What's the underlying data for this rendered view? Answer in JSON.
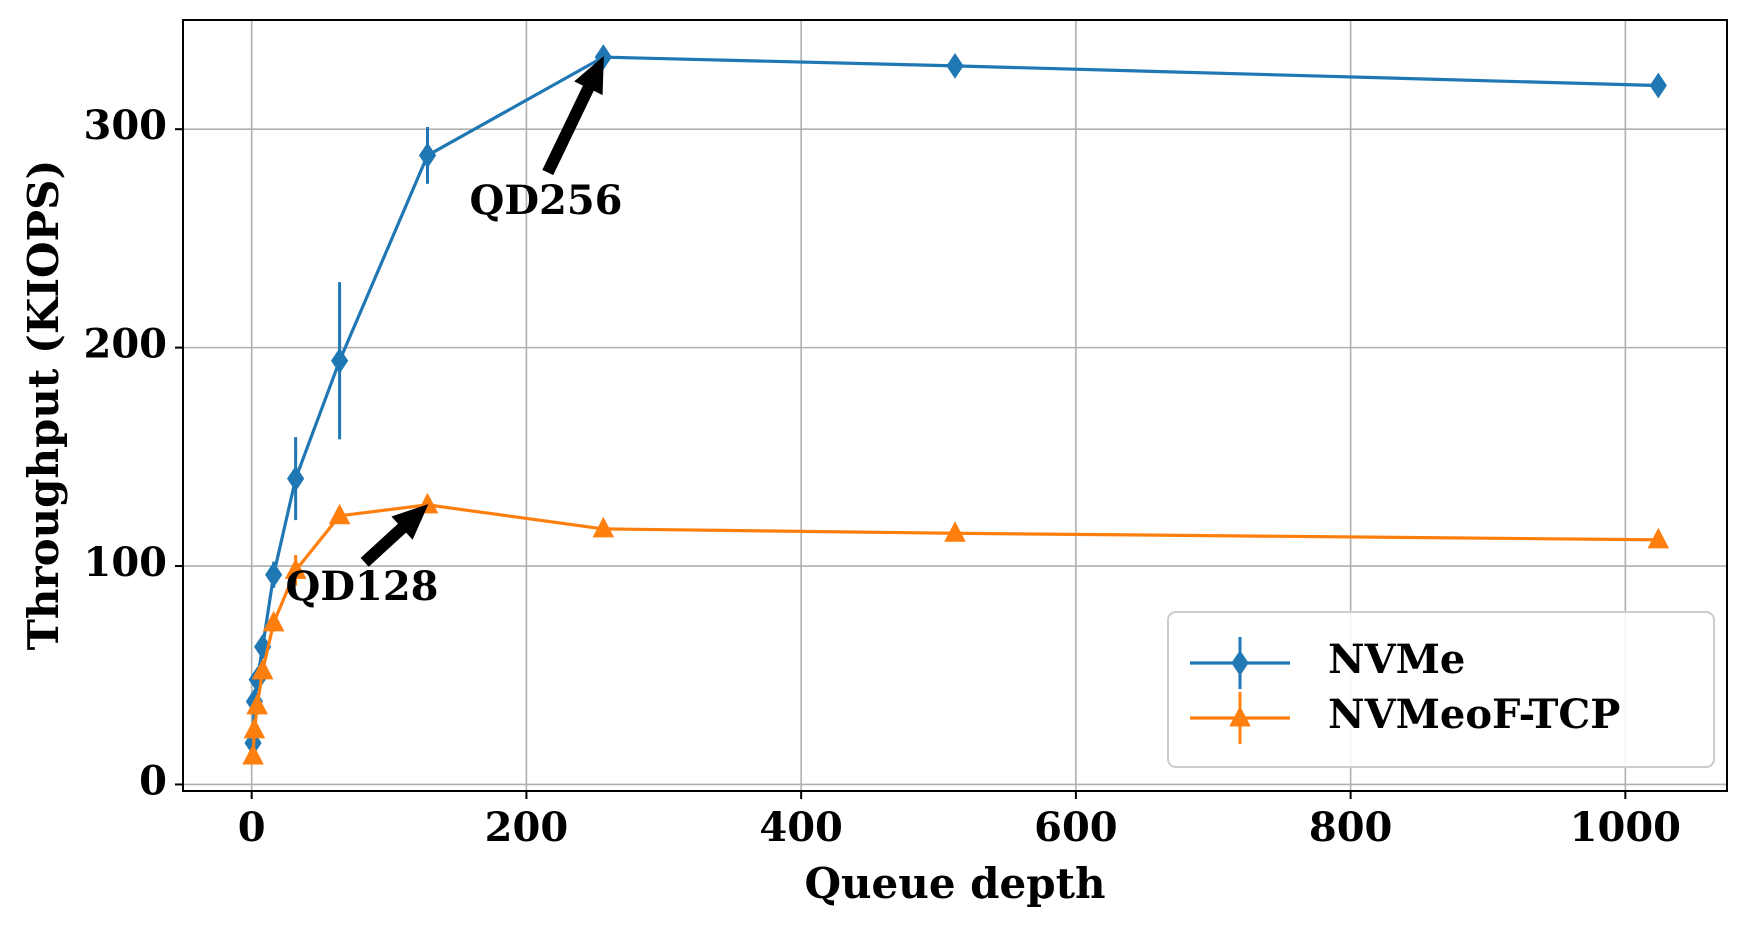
{
  "chart_data": {
    "type": "line",
    "xlabel": "Queue depth",
    "ylabel": "Throughput (KIOPS)",
    "xlim": [
      -50,
      1074
    ],
    "ylim": [
      -3,
      350
    ],
    "xticks": [
      0,
      200,
      400,
      600,
      800,
      1000
    ],
    "yticks": [
      0,
      100,
      200,
      300
    ],
    "xtick_labels": [
      "0",
      "200",
      "400",
      "600",
      "800",
      "1000"
    ],
    "ytick_labels": [
      "0",
      "100",
      "200",
      "300"
    ],
    "grid": true,
    "legend_position": "lower-right",
    "series": [
      {
        "name": "NVMe",
        "color": "#1f77b4",
        "marker": "diamond",
        "x": [
          1,
          2,
          4,
          8,
          16,
          32,
          64,
          128,
          256,
          512,
          1024
        ],
        "y": [
          19,
          38,
          48,
          63,
          96,
          140,
          194,
          288,
          333,
          329,
          320
        ],
        "err": [
          0,
          2,
          2,
          4,
          6,
          19,
          36,
          13,
          0,
          0,
          0
        ]
      },
      {
        "name": "NVMeoF-TCP",
        "color": "#ff7f0e",
        "marker": "triangle",
        "x": [
          1,
          2,
          4,
          8,
          16,
          32,
          64,
          128,
          256,
          512,
          1024
        ],
        "y": [
          13,
          25,
          36,
          52,
          74,
          98,
          123,
          128,
          117,
          115,
          112
        ],
        "err": [
          0,
          1,
          2,
          3,
          4,
          7,
          0,
          0,
          0,
          0,
          0
        ]
      }
    ],
    "annotations": [
      {
        "text": "QD256",
        "x": 256,
        "y": 333
      },
      {
        "text": "QD128",
        "x": 128,
        "y": 128
      }
    ]
  }
}
